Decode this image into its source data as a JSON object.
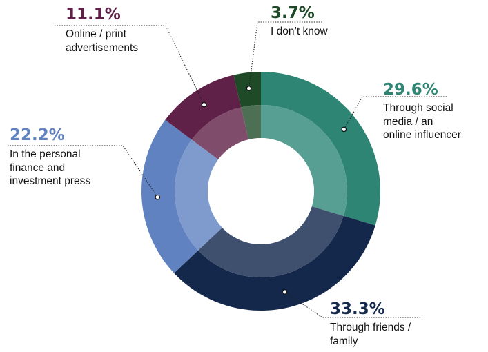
{
  "chart_data": {
    "type": "pie",
    "variant": "donut",
    "slices": [
      {
        "percent": "29.6%",
        "value": 29.6,
        "label": "Through social\nmedia / an\nonline influencer",
        "color": "#2e8573",
        "inner_color": "#579f92"
      },
      {
        "percent": "33.3%",
        "value": 33.3,
        "label": "Through friends /\nfamily",
        "color": "#14284b",
        "inner_color": "#3f506f"
      },
      {
        "percent": "22.2%",
        "value": 22.2,
        "label": "In the personal\nfinance and\ninvestment press",
        "color": "#6082c0",
        "inner_color": "#7f9bcd"
      },
      {
        "percent": "11.1%",
        "value": 11.1,
        "label": "Online / print\nadvertisements",
        "color": "#5f2147",
        "inner_color": "#7f4d6b"
      },
      {
        "percent": "3.7%",
        "value": 3.7,
        "label": "I don’t know",
        "color": "#1f4a27",
        "inner_color": "#4d6f53"
      }
    ]
  }
}
